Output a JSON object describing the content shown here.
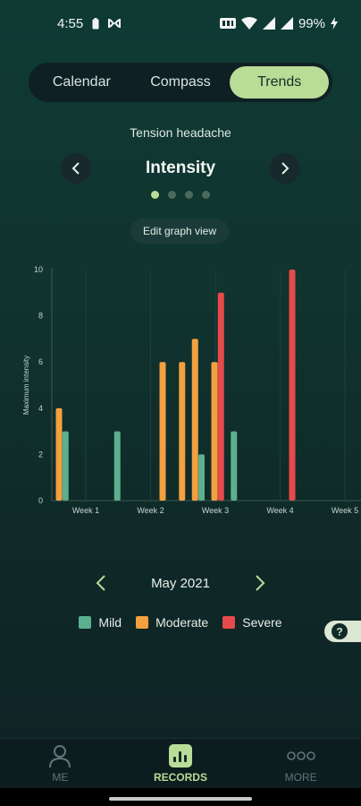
{
  "status_bar": {
    "time": "4:55",
    "battery": "99%",
    "icons": [
      "battery-icon",
      "signal-icon",
      "wifi-icon",
      "cell-signal-icon",
      "charging-icon"
    ]
  },
  "tabs": [
    {
      "label": "Calendar",
      "active": false
    },
    {
      "label": "Compass",
      "active": false
    },
    {
      "label": "Trends",
      "active": true
    }
  ],
  "condition": "Tension headache",
  "metric": {
    "title": "Intensity",
    "page_count": 4,
    "active_page": 0
  },
  "edit_graph_label": "Edit graph view",
  "colors": {
    "accent": "#b9dc97",
    "mild": "#5cb08e",
    "moderate": "#f3a040",
    "severe": "#e64a4a"
  },
  "chart_data": {
    "type": "bar",
    "ylabel": "Maximum intensity",
    "ylim": [
      0,
      10
    ],
    "yticks": [
      0,
      2,
      4,
      6,
      8,
      10
    ],
    "x_tick_labels": [
      "Week 1",
      "Week 2",
      "Week 3",
      "Week 4",
      "Week 5"
    ],
    "grid": "vertical week lines",
    "bars": [
      {
        "week": 1.0,
        "severity": "moderate",
        "value": 4
      },
      {
        "week": 1.1,
        "severity": "mild",
        "value": 3
      },
      {
        "week": 1.9,
        "severity": "mild",
        "value": 3
      },
      {
        "week": 2.6,
        "severity": "moderate",
        "value": 6
      },
      {
        "week": 2.9,
        "severity": "moderate",
        "value": 6
      },
      {
        "week": 3.1,
        "severity": "moderate",
        "value": 7
      },
      {
        "week": 3.2,
        "severity": "mild",
        "value": 2
      },
      {
        "week": 3.4,
        "severity": "moderate",
        "value": 6
      },
      {
        "week": 3.5,
        "severity": "severe",
        "value": 9
      },
      {
        "week": 3.7,
        "severity": "mild",
        "value": 3
      },
      {
        "week": 4.6,
        "severity": "severe",
        "value": 10
      }
    ]
  },
  "month": "May 2021",
  "legend": [
    {
      "label": "Mild",
      "key": "mild"
    },
    {
      "label": "Moderate",
      "key": "moderate"
    },
    {
      "label": "Severe",
      "key": "severe"
    }
  ],
  "help_icon": "question-icon",
  "bottom_nav": [
    {
      "label": "ME",
      "icon": "person-icon",
      "active": false
    },
    {
      "label": "RECORDS",
      "icon": "bar-chart-icon",
      "active": true
    },
    {
      "label": "MORE",
      "icon": "more-dots-icon",
      "active": false
    }
  ]
}
